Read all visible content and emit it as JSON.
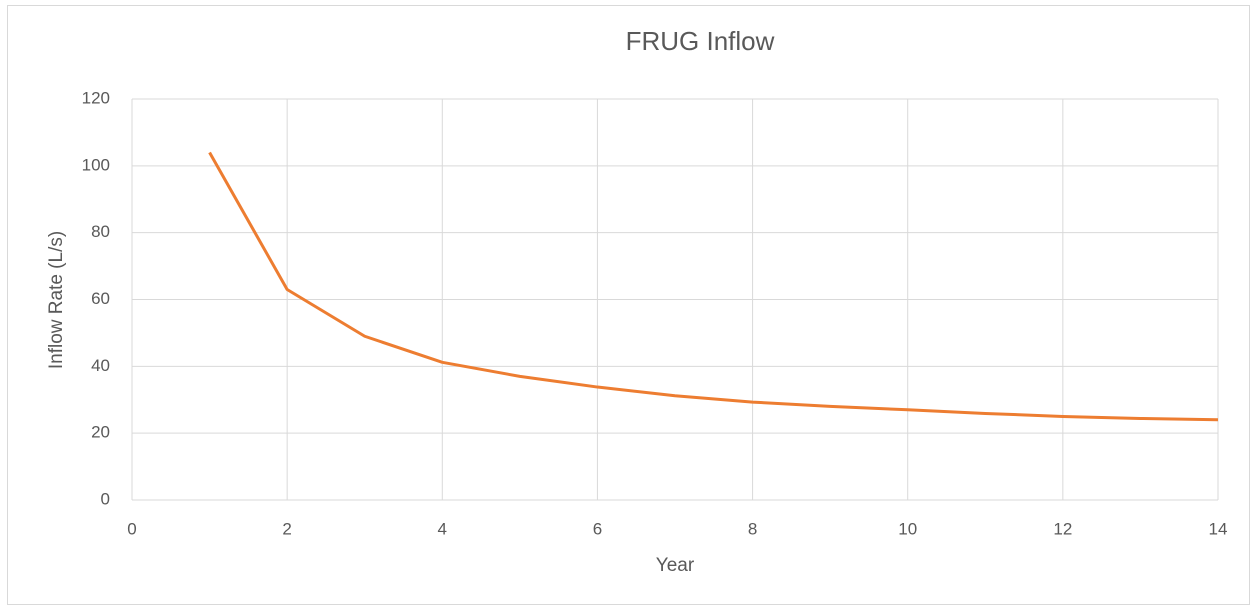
{
  "chart_data": {
    "type": "line",
    "title": "FRUG Inflow",
    "x_label": "Year",
    "y_label": "Inflow Rate (L/s)",
    "x": [
      1,
      2,
      3,
      4,
      5,
      6,
      7,
      8,
      9,
      10,
      11,
      12,
      13,
      14
    ],
    "series": [
      {
        "name": "Inflow",
        "color": "#ed7d31",
        "values": [
          104,
          63,
          49,
          41.2,
          37,
          33.8,
          31.2,
          29.3,
          28,
          27,
          25.9,
          25,
          24.4,
          24
        ]
      }
    ],
    "xlim": [
      0,
      14
    ],
    "xticks": [
      0,
      2,
      4,
      6,
      8,
      10,
      12,
      14
    ],
    "ylim": [
      0,
      120
    ],
    "yticks": [
      0,
      20,
      40,
      60,
      80,
      100,
      120
    ],
    "grid": true
  }
}
